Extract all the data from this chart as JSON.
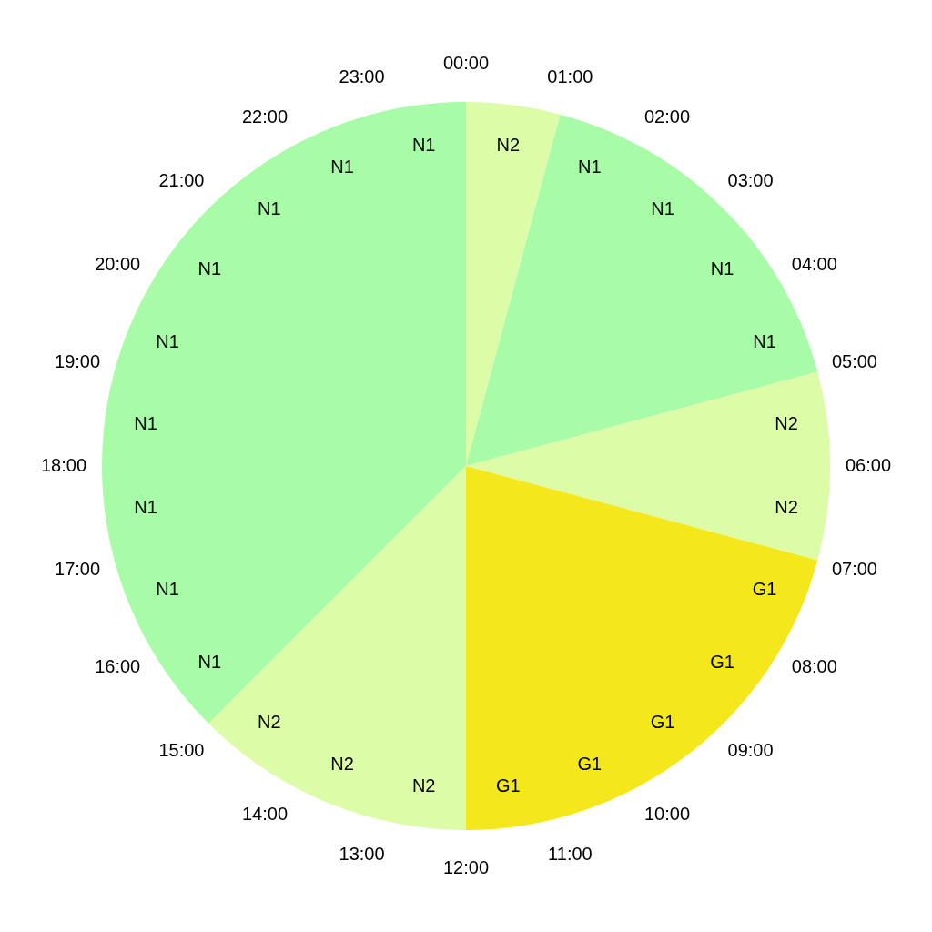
{
  "chart_data": {
    "type": "pie",
    "categories": [
      "N2",
      "N1",
      "N2",
      "G1",
      "N2",
      "N1"
    ],
    "values": [
      4.1667,
      16.6667,
      8.3333,
      20.8333,
      12.5,
      37.5
    ],
    "colors": [
      "#dcfca8",
      "#a8fca8",
      "#dcfca8",
      "#f4e81c",
      "#dcfca8",
      "#a8fca8"
    ],
    "annotations": [
      "00:00",
      "01:00",
      "02:00",
      "03:00",
      "04:00",
      "05:00",
      "06:00",
      "07:00",
      "08:00",
      "09:00",
      "10:00",
      "11:00",
      "12:00",
      "13:00",
      "14:00",
      "15:00",
      "16:00",
      "17:00",
      "18:00",
      "19:00",
      "20:00",
      "21:00",
      "22:00",
      "23:00",
      "N1",
      "N1",
      "N1",
      "N2",
      "G1",
      "G1",
      "G1",
      "G1",
      "N2",
      "N2",
      "N1",
      "N1",
      "N1",
      "N1",
      "N1",
      "N1",
      "N1",
      "N1"
    ]
  }
}
